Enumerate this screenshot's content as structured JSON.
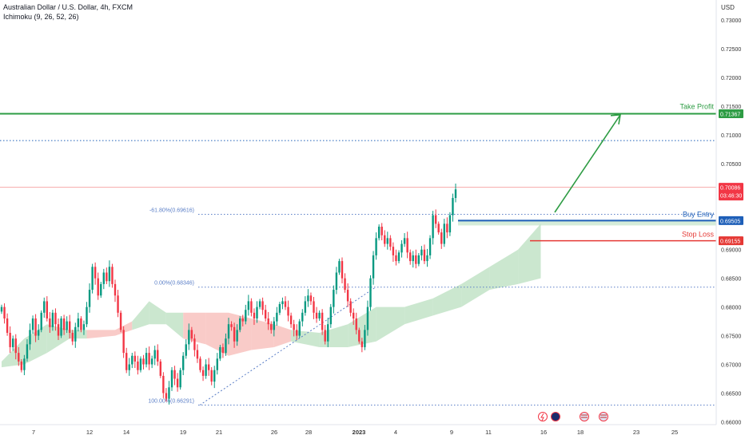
{
  "header": {
    "title": "Australian Dollar / U.S. Dollar, 4h, FXCM",
    "indicator": "Ichimoku (9, 26, 52, 26)"
  },
  "currency": "USD",
  "colors": {
    "up": "#089981",
    "down": "#f23645",
    "take_profit": "#2e9c44",
    "buy_entry": "#1e5fb8",
    "stop_loss": "#e53935",
    "fib": "#5b7fc7",
    "cloud_green": "#b9dfbf",
    "cloud_red": "#f7b9b5",
    "price_line": "#f7a8a8",
    "price_badge": "#f23645",
    "axis_text": "#333333"
  },
  "chart_data": {
    "type": "candlestick",
    "title": "Australian Dollar / U.S. Dollar, 4h, FXCM",
    "y_unit": "USD",
    "ylim": [
      0.6595,
      0.7335
    ],
    "y_ticks": [
      "0.73000",
      "0.72500",
      "0.72000",
      "0.71500",
      "0.71000",
      "0.70500",
      "0.69000",
      "0.68500",
      "0.68000",
      "0.67500",
      "0.67000",
      "0.66500",
      "0.66000"
    ],
    "x_ticks": [
      "7",
      "12",
      "14",
      "19",
      "21",
      "26",
      "28",
      "2023",
      "4",
      "9",
      "11",
      "16",
      "18",
      "23",
      "25"
    ],
    "levels": {
      "take_profit": {
        "label": "Take Profit",
        "value": 0.71367,
        "badge": "0.71367"
      },
      "buy_entry": {
        "label": "Buy Entry",
        "value": 0.69505,
        "badge": "0.69505"
      },
      "stop_loss": {
        "label": "Stop Loss",
        "value": 0.69155,
        "badge": "0.69155"
      },
      "resistance_dotted": 0.709,
      "fib_minus_61": {
        "label": "-61.80%(0.69616)",
        "value": 0.69616
      },
      "fib_0": {
        "label": "0.00%(0.68346)",
        "value": 0.68346
      },
      "fib_100": {
        "label": "100.00%(0.66291)",
        "value": 0.66291
      }
    },
    "current_price": {
      "value": 0.70086,
      "badge": "0.70086",
      "countdown": "03:46:30"
    },
    "candles_close": [
      0.68,
      0.678,
      0.6755,
      0.673,
      0.6745,
      0.672,
      0.6705,
      0.669,
      0.671,
      0.6735,
      0.676,
      0.678,
      0.675,
      0.676,
      0.679,
      0.681,
      0.678,
      0.6765,
      0.679,
      0.677,
      0.675,
      0.678,
      0.676,
      0.6775,
      0.6755,
      0.674,
      0.6765,
      0.678,
      0.676,
      0.677,
      0.68,
      0.683,
      0.687,
      0.685,
      0.682,
      0.684,
      0.686,
      0.6845,
      0.687,
      0.684,
      0.682,
      0.679,
      0.676,
      0.672,
      0.669,
      0.67,
      0.6715,
      0.6705,
      0.669,
      0.671,
      0.67,
      0.672,
      0.67,
      0.671,
      0.6725,
      0.6705,
      0.668,
      0.665,
      0.664,
      0.666,
      0.669,
      0.6675,
      0.666,
      0.669,
      0.6715,
      0.6735,
      0.676,
      0.6745,
      0.6725,
      0.671,
      0.669,
      0.668,
      0.67,
      0.669,
      0.667,
      0.669,
      0.671,
      0.673,
      0.672,
      0.6745,
      0.677,
      0.6765,
      0.674,
      0.676,
      0.678,
      0.6775,
      0.6795,
      0.681,
      0.679,
      0.678,
      0.68,
      0.681,
      0.6795,
      0.678,
      0.677,
      0.676,
      0.6775,
      0.679,
      0.6805,
      0.681,
      0.68,
      0.6785,
      0.677,
      0.676,
      0.675,
      0.6775,
      0.679,
      0.681,
      0.682,
      0.681,
      0.679,
      0.678,
      0.679,
      0.676,
      0.674,
      0.677,
      0.68,
      0.683,
      0.686,
      0.688,
      0.685,
      0.683,
      0.681,
      0.679,
      0.678,
      0.676,
      0.674,
      0.673,
      0.676,
      0.68,
      0.685,
      0.689,
      0.692,
      0.694,
      0.6925,
      0.691,
      0.692,
      0.6905,
      0.689,
      0.688,
      0.6895,
      0.691,
      0.692,
      0.6895,
      0.688,
      0.689,
      0.6875,
      0.689,
      0.69,
      0.688,
      0.689,
      0.692,
      0.696,
      0.6945,
      0.693,
      0.691,
      0.6945,
      0.693,
      0.696,
      0.699,
      0.7005
    ],
    "cloud": [
      {
        "x_index": 0,
        "top": 0.6705,
        "bottom": 0.6695,
        "color": "green"
      },
      {
        "x_index": 8,
        "top": 0.6745,
        "bottom": 0.67,
        "color": "green"
      },
      {
        "x_index": 16,
        "top": 0.677,
        "bottom": 0.672,
        "color": "green"
      },
      {
        "x_index": 24,
        "top": 0.676,
        "bottom": 0.6745,
        "color": "green"
      },
      {
        "x_index": 30,
        "top": 0.676,
        "bottom": 0.6745,
        "color": "red"
      },
      {
        "x_index": 40,
        "top": 0.676,
        "bottom": 0.675,
        "color": "red"
      },
      {
        "x_index": 46,
        "top": 0.6775,
        "bottom": 0.676,
        "color": "green"
      },
      {
        "x_index": 52,
        "top": 0.681,
        "bottom": 0.677,
        "color": "green"
      },
      {
        "x_index": 58,
        "top": 0.679,
        "bottom": 0.677,
        "color": "green"
      },
      {
        "x_index": 64,
        "top": 0.679,
        "bottom": 0.6745,
        "color": "red"
      },
      {
        "x_index": 72,
        "top": 0.679,
        "bottom": 0.6735,
        "color": "red"
      },
      {
        "x_index": 80,
        "top": 0.679,
        "bottom": 0.6715,
        "color": "red"
      },
      {
        "x_index": 88,
        "top": 0.678,
        "bottom": 0.6725,
        "color": "red"
      },
      {
        "x_index": 96,
        "top": 0.677,
        "bottom": 0.673,
        "color": "red"
      },
      {
        "x_index": 102,
        "top": 0.676,
        "bottom": 0.674,
        "color": "green"
      },
      {
        "x_index": 112,
        "top": 0.6755,
        "bottom": 0.673,
        "color": "green"
      },
      {
        "x_index": 122,
        "top": 0.677,
        "bottom": 0.673,
        "color": "green"
      },
      {
        "x_index": 132,
        "top": 0.68,
        "bottom": 0.674,
        "color": "green"
      },
      {
        "x_index": 142,
        "top": 0.68,
        "bottom": 0.677,
        "color": "green"
      },
      {
        "x_index": 152,
        "top": 0.6815,
        "bottom": 0.6785,
        "color": "green"
      },
      {
        "x_index": 162,
        "top": 0.684,
        "bottom": 0.68,
        "color": "green"
      },
      {
        "x_index": 172,
        "top": 0.687,
        "bottom": 0.683,
        "color": "green"
      },
      {
        "x_index": 182,
        "top": 0.69,
        "bottom": 0.684,
        "color": "green"
      },
      {
        "x_index": 190,
        "top": 0.6945,
        "bottom": 0.685,
        "color": "green"
      }
    ],
    "projection_arrow": {
      "from": 0.6965,
      "to": 0.7135
    }
  }
}
